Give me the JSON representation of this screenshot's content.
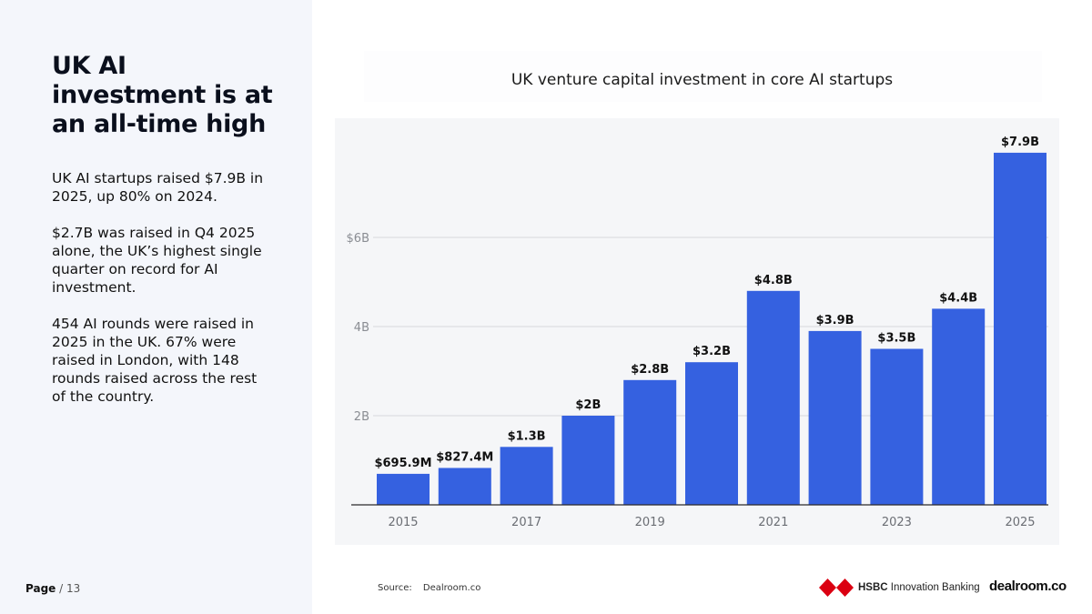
{
  "headline": "UK AI investment is at an all-time high",
  "paragraphs": [
    "UK AI startups raised $7.9B in 2025, up 80% on 2024.",
    "$2.7B was raised in Q4 2025 alone, the UK’s highest single quarter on record for AI investment.",
    "454 AI rounds were raised in 2025 in the UK. 67% were raised in London, with 148 rounds raised across the rest of the country."
  ],
  "footer": {
    "page_label": "Page",
    "page_total": "/ 13",
    "source_label": "Source:",
    "source_value": "Dealroom.co",
    "hsbc_brand": "HSBC",
    "hsbc_sub": "Innovation Banking",
    "dealroom_logo": "dealroom.co"
  },
  "colors": {
    "bar": "#3561e0",
    "panel": "#f4f6fb",
    "hsbc_red": "#db0011"
  },
  "chart_data": {
    "type": "bar",
    "title": "UK venture capital investment in core AI startups",
    "xlabel": "",
    "ylabel": "",
    "categories": [
      "2015",
      "2016",
      "2017",
      "2018",
      "2019",
      "2020",
      "2021",
      "2022",
      "2023",
      "2024",
      "2025"
    ],
    "values": [
      0.6959,
      0.8274,
      1.3,
      2.0,
      2.8,
      3.2,
      4.8,
      3.9,
      3.5,
      4.4,
      7.9
    ],
    "value_labels": [
      "$695.9M",
      "$827.4M",
      "$1.3B",
      "$2B",
      "$2.8B",
      "$3.2B",
      "$4.8B",
      "$3.9B",
      "$3.5B",
      "$4.4B",
      "$7.9B"
    ],
    "x_tick_labels": [
      "2015",
      "",
      "2017",
      "",
      "2019",
      "",
      "2021",
      "",
      "2023",
      "",
      "2025"
    ],
    "y_ticks": [
      2,
      4,
      6
    ],
    "y_tick_labels": [
      "2B",
      "4B",
      "$6B"
    ],
    "units": "billion USD",
    "ylim": [
      0,
      8.6
    ],
    "grid": true,
    "legend": "none"
  }
}
